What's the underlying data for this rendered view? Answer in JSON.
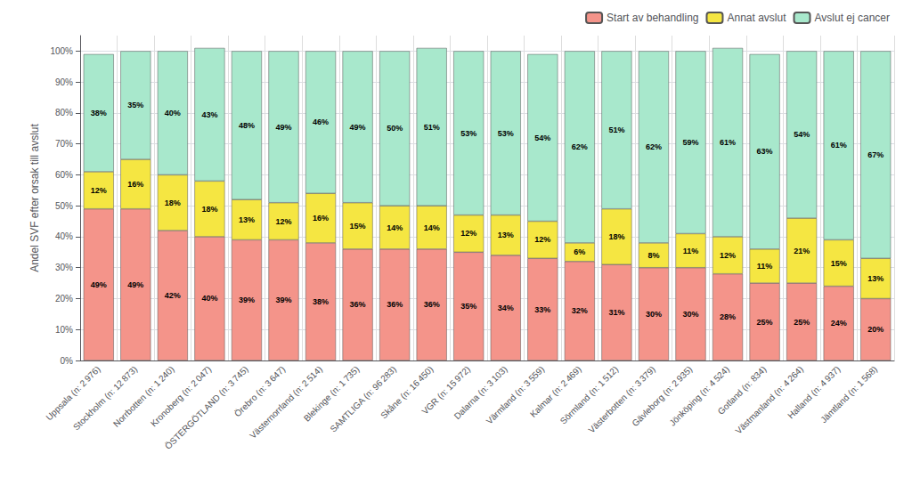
{
  "chart_data": {
    "type": "bar",
    "stacked": true,
    "categories": [
      "Uppsala (n: 2 976)",
      "Stockholm (n: 12 873)",
      "Norrbotten (n: 1 240)",
      "Kronoberg (n: 2 047)",
      "ÖSTERGÖTLAND (n: 3 745)",
      "Örebro (n: 3 647)",
      "Västernorrland (n: 2 514)",
      "Blekinge (n: 1 735)",
      "SAMTLIGA (n: 96 283)",
      "Skåne (n: 16 450)",
      "VGR (n: 15 972)",
      "Dalarna (n: 3 103)",
      "Värmland (n: 3 559)",
      "Kalmar (n: 2 469)",
      "Sörmland (n: 1 512)",
      "Västerbotten (n: 3 379)",
      "Gävleborg (n: 2 935)",
      "Jönköping (n: 4 524)",
      "Gotland (n: 834)",
      "Västmanland (n: 4 264)",
      "Halland (n: 4 937)",
      "Jämtland (n: 1 568)"
    ],
    "series": [
      {
        "name": "Start av behandling",
        "color": "#F4948A",
        "values": [
          49,
          49,
          42,
          40,
          39,
          39,
          38,
          36,
          36,
          36,
          35,
          34,
          33,
          32,
          31,
          30,
          30,
          28,
          25,
          25,
          24,
          20
        ],
        "value_labels": [
          "49%",
          "49%",
          "42%",
          "40%",
          "39%",
          "39%",
          "38%",
          "36%",
          "36%",
          "36%",
          "35%",
          "34%",
          "33%",
          "32%",
          "31%",
          "30%",
          "30%",
          "28%",
          "25%",
          "25%",
          "24%",
          "20%"
        ]
      },
      {
        "name": "Annat avslut",
        "color": "#F5E642",
        "values": [
          12,
          16,
          18,
          18,
          13,
          12,
          16,
          15,
          14,
          14,
          12,
          13,
          12,
          6,
          18,
          8,
          11,
          12,
          11,
          21,
          15,
          13
        ],
        "value_labels": [
          "12%",
          "16%",
          "18%",
          "18%",
          "13%",
          "12%",
          "16%",
          "15%",
          "14%",
          "14%",
          "12%",
          "13%",
          "12%",
          "6%",
          "18%",
          "8%",
          "11%",
          "12%",
          "11%",
          "21%",
          "15%",
          "13%"
        ]
      },
      {
        "name": "Avslut ej cancer",
        "color": "#A8E8CC",
        "values": [
          38,
          35,
          40,
          43,
          48,
          49,
          46,
          49,
          50,
          51,
          53,
          53,
          54,
          62,
          51,
          62,
          59,
          61,
          63,
          54,
          61,
          67
        ],
        "value_labels": [
          "38%",
          "35%",
          "40%",
          "43%",
          "48%",
          "49%",
          "46%",
          "49%",
          "50%",
          "51%",
          "53%",
          "53%",
          "54%",
          "62%",
          "51%",
          "62%",
          "59%",
          "61%",
          "63%",
          "54%",
          "61%",
          "67%"
        ]
      }
    ],
    "ylabel": "Andel SVF efter orsak till avslut",
    "ylim": [
      0,
      105
    ],
    "yticks": [
      {
        "value": 0,
        "label": "0%"
      },
      {
        "value": 10,
        "label": "10%"
      },
      {
        "value": 20,
        "label": "20%"
      },
      {
        "value": 30,
        "label": "30%"
      },
      {
        "value": 40,
        "label": "40%"
      },
      {
        "value": 50,
        "label": "50%"
      },
      {
        "value": 60,
        "label": "60%"
      },
      {
        "value": 70,
        "label": "70%"
      },
      {
        "value": 80,
        "label": "80%"
      },
      {
        "value": 90,
        "label": "90%"
      },
      {
        "value": 100,
        "label": "100%"
      }
    ],
    "grid": true,
    "legend": "upper right",
    "data_labels": true
  }
}
